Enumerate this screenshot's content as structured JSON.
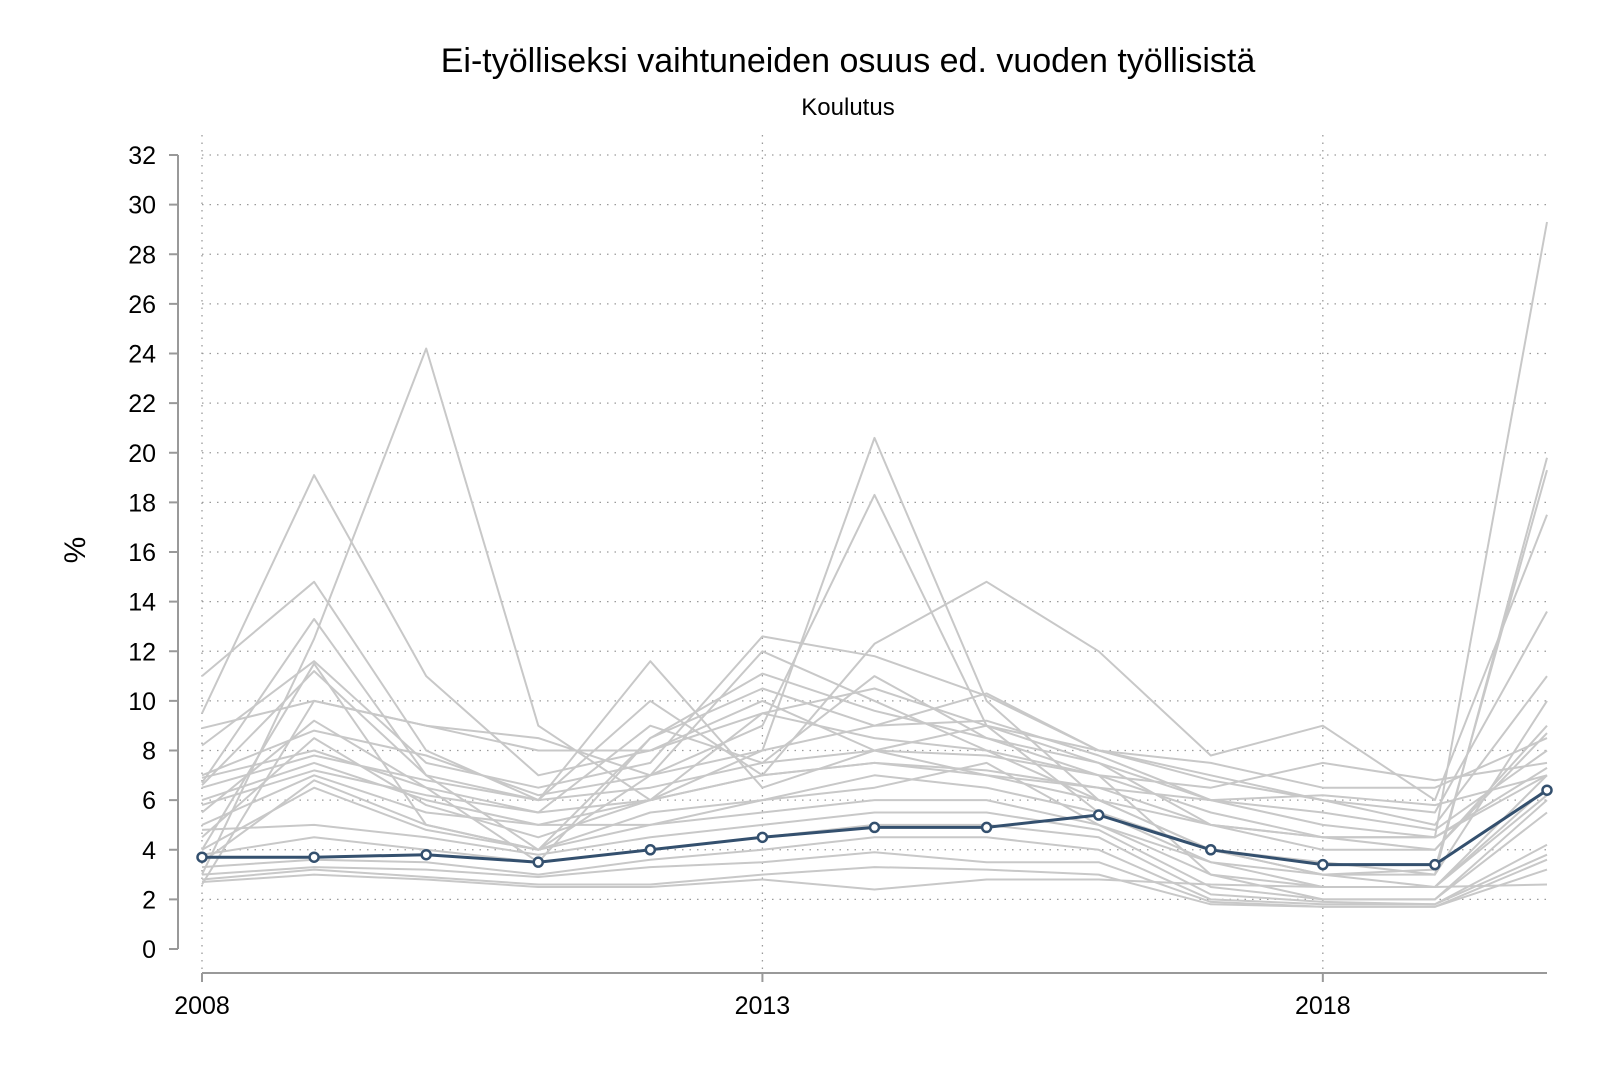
{
  "chart_data": {
    "type": "line",
    "title": "Ei-työlliseksi vaihtuneiden osuus ed. vuoden työllisistä",
    "subtitle": "Koulutus",
    "xlabel": "",
    "ylabel": "%",
    "x": [
      2008,
      2009,
      2010,
      2011,
      2012,
      2013,
      2014,
      2015,
      2016,
      2017,
      2018,
      2019,
      2020
    ],
    "xlim": [
      2008,
      2020
    ],
    "xticks": [
      2008,
      2013,
      2018
    ],
    "ylim": [
      0,
      32
    ],
    "yticks": [
      0,
      2,
      4,
      6,
      8,
      10,
      12,
      14,
      16,
      18,
      20,
      22,
      24,
      26,
      28,
      30,
      32
    ],
    "grid": true,
    "legend": "none",
    "colors": {
      "highlight": "#34506e",
      "background": "#c8c8c8",
      "grid": "#9a9a9a",
      "axis": "#999999"
    },
    "highlight_series": {
      "values": [
        3.7,
        3.7,
        3.8,
        3.5,
        4.0,
        4.5,
        4.9,
        4.9,
        5.4,
        4.0,
        3.4,
        3.4,
        6.4
      ]
    },
    "background_series": [
      {
        "values": [
          9.5,
          19.1,
          11.0,
          7.0,
          8.0,
          9.5,
          10.5,
          9.0,
          7.5,
          6.0,
          5.0,
          4.5,
          29.3
        ]
      },
      {
        "values": [
          3.0,
          12.5,
          24.2,
          9.0,
          6.0,
          8.0,
          20.6,
          10.0,
          6.0,
          4.0,
          3.5,
          3.0,
          19.8
        ]
      },
      {
        "values": [
          4.0,
          11.5,
          5.0,
          4.0,
          7.0,
          9.0,
          18.3,
          9.0,
          5.5,
          3.5,
          3.0,
          3.2,
          19.3
        ]
      },
      {
        "values": [
          11.0,
          14.8,
          8.0,
          6.0,
          10.0,
          7.0,
          12.3,
          14.8,
          12.0,
          7.8,
          9.0,
          6.0,
          17.5
        ]
      },
      {
        "values": [
          6.7,
          13.3,
          7.0,
          6.0,
          11.6,
          6.5,
          8.0,
          9.0,
          8.0,
          6.8,
          6.0,
          5.5,
          13.6
        ]
      },
      {
        "values": [
          8.2,
          11.6,
          7.5,
          6.5,
          7.5,
          12.6,
          11.8,
          10.2,
          8.0,
          7.0,
          6.0,
          5.0,
          11.0
        ]
      },
      {
        "values": [
          2.6,
          10.0,
          9.0,
          8.5,
          7.0,
          12.0,
          10.0,
          8.0,
          6.0,
          4.0,
          3.0,
          3.0,
          10.0
        ]
      },
      {
        "values": [
          6.6,
          11.2,
          7.0,
          4.0,
          8.5,
          11.1,
          9.6,
          8.5,
          7.5,
          5.0,
          4.0,
          4.0,
          9.0
        ]
      },
      {
        "values": [
          5.5,
          9.2,
          6.5,
          5.5,
          9.0,
          7.5,
          11.0,
          8.5,
          7.0,
          5.5,
          4.5,
          4.0,
          8.7
        ]
      },
      {
        "values": [
          6.9,
          8.0,
          6.5,
          3.5,
          8.5,
          10.5,
          9.0,
          10.3,
          8.0,
          7.5,
          6.5,
          6.5,
          8.5
        ]
      },
      {
        "values": [
          5.0,
          7.0,
          5.5,
          5.0,
          6.0,
          7.0,
          7.5,
          7.0,
          6.5,
          5.0,
          4.5,
          4.5,
          7.3
        ]
      },
      {
        "values": [
          4.5,
          8.5,
          5.8,
          4.5,
          6.0,
          9.5,
          8.5,
          8.0,
          7.0,
          3.0,
          2.5,
          2.5,
          7.0
        ]
      },
      {
        "values": [
          3.5,
          6.8,
          5.0,
          4.0,
          5.5,
          6.0,
          6.5,
          7.5,
          5.0,
          3.5,
          2.5,
          2.5,
          6.5
        ]
      },
      {
        "values": [
          6.0,
          7.5,
          6.0,
          5.0,
          5.0,
          6.0,
          7.0,
          6.5,
          5.5,
          4.0,
          3.0,
          2.5,
          6.2
        ]
      },
      {
        "values": [
          4.0,
          6.5,
          4.8,
          4.0,
          5.0,
          5.5,
          6.0,
          6.0,
          5.0,
          3.0,
          2.0,
          2.0,
          6.0
        ]
      },
      {
        "values": [
          4.8,
          5.0,
          4.5,
          3.8,
          4.5,
          5.0,
          5.5,
          5.5,
          4.8,
          2.5,
          2.0,
          2.0,
          5.5
        ]
      },
      {
        "values": [
          3.8,
          4.5,
          4.0,
          3.5,
          4.0,
          4.5,
          5.0,
          5.0,
          4.5,
          2.2,
          1.9,
          1.8,
          4.2
        ]
      },
      {
        "values": [
          3.3,
          3.6,
          3.5,
          3.0,
          3.6,
          4.0,
          4.5,
          4.5,
          4.0,
          2.0,
          1.8,
          1.8,
          3.8
        ]
      },
      {
        "values": [
          3.0,
          3.3,
          3.2,
          2.9,
          3.3,
          3.5,
          3.9,
          3.5,
          3.5,
          1.9,
          1.7,
          1.7,
          3.6
        ]
      },
      {
        "values": [
          2.8,
          3.2,
          2.9,
          2.6,
          2.6,
          3.0,
          3.3,
          3.2,
          3.0,
          1.8,
          1.7,
          1.7,
          3.2
        ]
      },
      {
        "values": [
          2.7,
          3.0,
          2.8,
          2.5,
          2.5,
          2.8,
          2.4,
          2.8,
          2.8,
          2.6,
          2.5,
          2.5,
          2.6
        ]
      },
      {
        "values": [
          7.0,
          8.8,
          7.8,
          6.2,
          7.0,
          8.0,
          9.0,
          9.2,
          7.8,
          6.0,
          5.5,
          4.8,
          8.0
        ]
      },
      {
        "values": [
          8.9,
          10.0,
          9.0,
          8.0,
          8.0,
          10.0,
          8.0,
          7.0,
          6.0,
          5.0,
          4.5,
          4.5,
          7.0
        ]
      },
      {
        "values": [
          6.5,
          7.8,
          6.8,
          6.0,
          6.5,
          7.5,
          8.0,
          7.8,
          7.0,
          6.5,
          7.5,
          6.8,
          7.5
        ]
      },
      {
        "values": [
          5.8,
          7.2,
          6.2,
          5.5,
          6.0,
          7.0,
          7.5,
          7.2,
          6.5,
          6.0,
          6.2,
          5.8,
          7.0
        ]
      }
    ]
  }
}
